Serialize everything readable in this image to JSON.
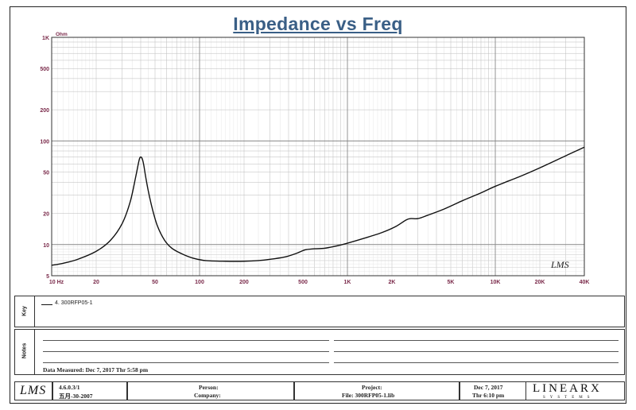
{
  "chart_data": {
    "type": "line",
    "title": "Impedance vs Freq",
    "ylabel_unit": "Ohm",
    "xscale": "log",
    "yscale": "log",
    "xlim": [
      10,
      40000
    ],
    "ylim": [
      5,
      1000
    ],
    "x_tick_labels": [
      {
        "v": 10,
        "t": "10  Hz"
      },
      {
        "v": 20,
        "t": "20"
      },
      {
        "v": 50,
        "t": "50"
      },
      {
        "v": 100,
        "t": "100"
      },
      {
        "v": 200,
        "t": "200"
      },
      {
        "v": 500,
        "t": "500"
      },
      {
        "v": 1000,
        "t": "1K"
      },
      {
        "v": 2000,
        "t": "2K"
      },
      {
        "v": 5000,
        "t": "5K"
      },
      {
        "v": 10000,
        "t": "10K"
      },
      {
        "v": 20000,
        "t": "20K"
      },
      {
        "v": 40000,
        "t": "40K"
      }
    ],
    "y_tick_labels": [
      {
        "v": 1000,
        "t": "1K"
      },
      {
        "v": 500,
        "t": "500"
      },
      {
        "v": 200,
        "t": "200"
      },
      {
        "v": 100,
        "t": "100"
      },
      {
        "v": 50,
        "t": "50"
      },
      {
        "v": 20,
        "t": "20"
      },
      {
        "v": 10,
        "t": "10"
      },
      {
        "v": 5,
        "t": "5"
      }
    ],
    "grid": true,
    "watermark": "LMS",
    "series": [
      {
        "name": "4. 300RFP05-1",
        "color": "#111111",
        "x": [
          10,
          12,
          15,
          20,
          25,
          30,
          34,
          37,
          39,
          40,
          41,
          42,
          43,
          45,
          48,
          52,
          58,
          65,
          75,
          90,
          110,
          150,
          200,
          250,
          300,
          380,
          450,
          520,
          600,
          700,
          850,
          1000,
          1300,
          1700,
          2100,
          2500,
          2700,
          3000,
          3500,
          4500,
          6000,
          8000,
          10000,
          15000,
          20000,
          30000,
          40000
        ],
        "y": [
          6.3,
          6.6,
          7.2,
          8.6,
          11,
          16,
          26,
          45,
          65,
          70,
          67,
          58,
          47,
          33,
          22,
          15,
          11,
          9.2,
          8.2,
          7.4,
          7.0,
          6.9,
          6.9,
          7.0,
          7.2,
          7.6,
          8.2,
          8.9,
          9.1,
          9.2,
          9.7,
          10.3,
          11.5,
          13,
          14.8,
          17.3,
          17.8,
          17.8,
          19.2,
          22,
          26.5,
          31.5,
          36.5,
          46,
          55,
          72,
          87
        ]
      }
    ]
  },
  "legend": {
    "side_label": "Key",
    "entry": "4. 300RFP05-1"
  },
  "notes": {
    "side_label": "Notes",
    "measured": "Data Measured: Dec  7, 2017  Thr  5:58 pm"
  },
  "footer": {
    "logo": "LMS",
    "version": "4.6.0.3/1",
    "version_date": "五月-30-2007",
    "person_label": "Person:",
    "company_label": "Company:",
    "project_label": "Project:",
    "file_label": "File: 300RFP05-1.lib",
    "date": "Dec  7, 2017",
    "time": "Thr  6:10 pm",
    "brand": "LINEARX",
    "brand_sub": "SYSTEMS"
  }
}
